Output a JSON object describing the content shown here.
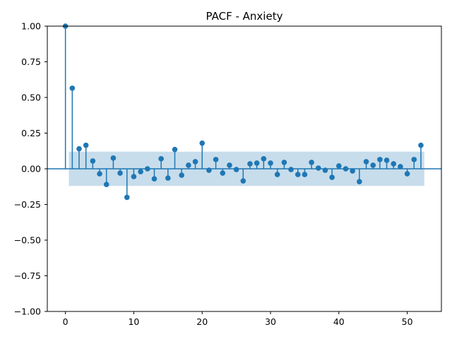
{
  "chart_data": {
    "type": "stem",
    "title": "PACF - Anxiety",
    "xlabel": "",
    "ylabel": "",
    "xlim": [
      -2.65,
      55.0
    ],
    "ylim": [
      -1.0,
      1.0
    ],
    "xticks": [
      0,
      10,
      20,
      30,
      40,
      50
    ],
    "xtick_labels": [
      "0",
      "10",
      "20",
      "30",
      "40",
      "50"
    ],
    "yticks": [
      -1.0,
      -0.75,
      -0.5,
      -0.25,
      0.0,
      0.25,
      0.5,
      0.75,
      1.0
    ],
    "ytick_labels": [
      "−1.00",
      "−0.75",
      "−0.50",
      "−0.25",
      "0.00",
      "0.25",
      "0.50",
      "0.75",
      "1.00"
    ],
    "confidence_band": {
      "lower": -0.12,
      "upper": 0.12,
      "x_start": 0.5,
      "x_end": 52.5
    },
    "colors": {
      "stem": "#1f77b4",
      "band": "#1f77b4",
      "band_opacity": 0.25
    },
    "x": [
      0,
      1,
      2,
      3,
      4,
      5,
      6,
      7,
      8,
      9,
      10,
      11,
      12,
      13,
      14,
      15,
      16,
      17,
      18,
      19,
      20,
      21,
      22,
      23,
      24,
      25,
      26,
      27,
      28,
      29,
      30,
      31,
      32,
      33,
      34,
      35,
      36,
      37,
      38,
      39,
      40,
      41,
      42,
      43,
      44,
      45,
      46,
      47,
      48,
      49,
      50,
      51,
      52
    ],
    "values": [
      1.0,
      0.565,
      0.14,
      0.165,
      0.055,
      -0.035,
      -0.11,
      0.075,
      -0.03,
      -0.2,
      -0.055,
      -0.02,
      0.0,
      -0.07,
      0.07,
      -0.065,
      0.135,
      -0.045,
      0.025,
      0.05,
      0.18,
      -0.01,
      0.065,
      -0.03,
      0.025,
      -0.005,
      -0.085,
      0.035,
      0.04,
      0.07,
      0.04,
      -0.04,
      0.045,
      -0.005,
      -0.04,
      -0.04,
      0.045,
      0.005,
      -0.01,
      -0.06,
      0.02,
      0.0,
      -0.015,
      -0.09,
      0.05,
      0.025,
      0.065,
      0.06,
      0.035,
      0.015,
      -0.035,
      0.065,
      0.165
    ]
  }
}
